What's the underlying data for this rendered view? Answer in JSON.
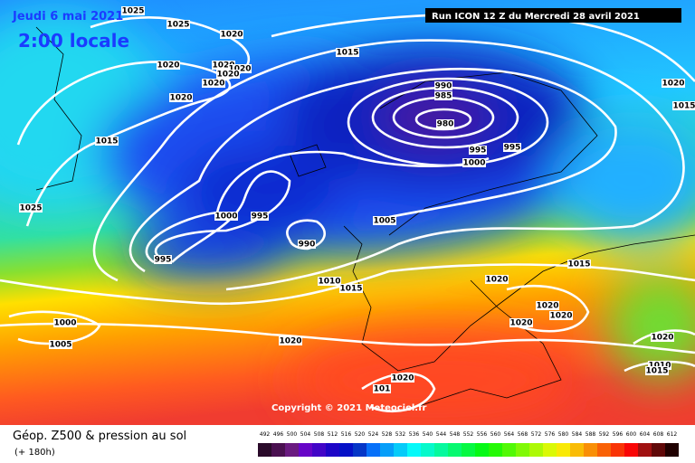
{
  "header": {
    "date": "Jeudi 6 mai 2021",
    "time": "2:00 locale",
    "run": "Run ICON 12 Z du Mercredi 28 avril 2021"
  },
  "footer": {
    "copyright": "Copyright © 2021 Meteociel.fr",
    "title": "Géop. Z500 & pression au sol",
    "subtitle": "(+ 180h)"
  },
  "isobars": {
    "labels": [
      "1025",
      "1025",
      "1020",
      "1015",
      "1020",
      "1020",
      "1020",
      "1020",
      "1020",
      "1020",
      "1015",
      "990",
      "985",
      "980",
      "995",
      "995",
      "1000",
      "1000",
      "995",
      "1005",
      "990",
      "995",
      "1025",
      "1015",
      "1020",
      "1010",
      "1015",
      "1020",
      "1020",
      "1020",
      "1000",
      "1005",
      "1020",
      "1020",
      "1010",
      "1015",
      "1020",
      "1015",
      "1020",
      "101"
    ]
  },
  "legend": {
    "scale": [
      492,
      496,
      500,
      504,
      508,
      512,
      516,
      520,
      524,
      528,
      532,
      536,
      540,
      544,
      548,
      552,
      556,
      560,
      564,
      568,
      572,
      576,
      580,
      584,
      588,
      592,
      596,
      600,
      604,
      608,
      612
    ]
  }
}
